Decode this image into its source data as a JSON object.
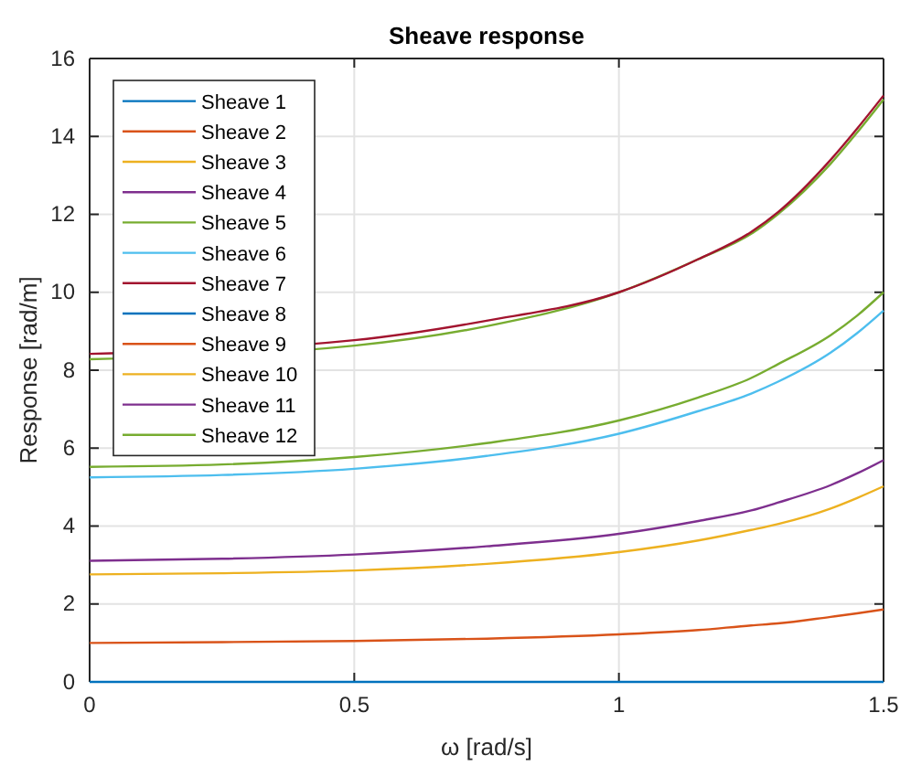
{
  "chart_data": {
    "type": "line",
    "title": "Sheave response",
    "xlabel": "ω [rad/s]",
    "ylabel": "Response [rad/m]",
    "x": [
      0,
      0.25,
      0.5,
      0.75,
      1.0,
      1.15,
      1.25,
      1.3,
      1.4,
      1.45,
      1.5
    ],
    "xlim": [
      0,
      1.5
    ],
    "xticks": [
      0,
      0.5,
      1,
      1.5
    ],
    "ylim": [
      0,
      16
    ],
    "yticks": [
      0,
      2,
      4,
      6,
      8,
      10,
      12,
      14,
      16
    ],
    "grid": true,
    "legend": "top left",
    "line_style": "solid",
    "marker": "none",
    "series": [
      {
        "name": "Sheave 1",
        "color": "#0072bd",
        "values": [
          0,
          0,
          0,
          0,
          0,
          0,
          0,
          0,
          0,
          0,
          0
        ]
      },
      {
        "name": "Sheave 2",
        "color": "#d95319",
        "values": [
          1.0,
          1.02,
          1.05,
          1.11,
          1.22,
          1.33,
          1.45,
          1.5,
          1.67,
          1.76,
          1.86
        ]
      },
      {
        "name": "Sheave 3",
        "color": "#edb120",
        "values": [
          2.76,
          2.79,
          2.86,
          3.03,
          3.33,
          3.63,
          3.9,
          4.05,
          4.45,
          4.72,
          5.02
        ]
      },
      {
        "name": "Sheave 4",
        "color": "#7e2f8e",
        "values": [
          3.11,
          3.16,
          3.27,
          3.48,
          3.8,
          4.13,
          4.4,
          4.6,
          5.05,
          5.35,
          5.69
        ]
      },
      {
        "name": "Sheave 5",
        "color": "#77ac30",
        "values": [
          8.28,
          null,
          8.63,
          9.13,
          10.0,
          10.85,
          11.5,
          12.0,
          13.3,
          14.1,
          14.95
        ]
      },
      {
        "name": "Sheave 6",
        "color": "#4dbeee",
        "values": [
          5.25,
          5.31,
          5.47,
          5.8,
          6.37,
          6.95,
          7.4,
          7.7,
          8.45,
          8.95,
          9.53
        ]
      },
      {
        "name": "Sheave 7",
        "color": "#a2142f",
        "values": [
          8.42,
          null,
          8.77,
          9.27,
          10.0,
          10.85,
          11.55,
          12.05,
          13.4,
          14.2,
          15.05
        ]
      },
      {
        "name": "Sheave 8",
        "color": "#0072bd",
        "values": [
          null,
          null,
          null,
          null,
          null,
          null,
          null,
          null,
          null,
          null,
          null
        ]
      },
      {
        "name": "Sheave 9",
        "color": "#d95319",
        "values": [
          null,
          null,
          null,
          null,
          null,
          null,
          null,
          null,
          null,
          null,
          null
        ]
      },
      {
        "name": "Sheave 10",
        "color": "#edb120",
        "values": [
          null,
          null,
          null,
          null,
          null,
          null,
          null,
          null,
          null,
          null,
          null
        ]
      },
      {
        "name": "Sheave 11",
        "color": "#7e2f8e",
        "values": [
          null,
          null,
          null,
          null,
          null,
          null,
          null,
          null,
          null,
          null,
          null
        ]
      },
      {
        "name": "Sheave 12",
        "color": "#77ac30",
        "values": [
          5.52,
          5.58,
          5.77,
          6.13,
          6.71,
          7.3,
          7.8,
          8.15,
          8.9,
          9.4,
          10.0
        ]
      }
    ]
  }
}
